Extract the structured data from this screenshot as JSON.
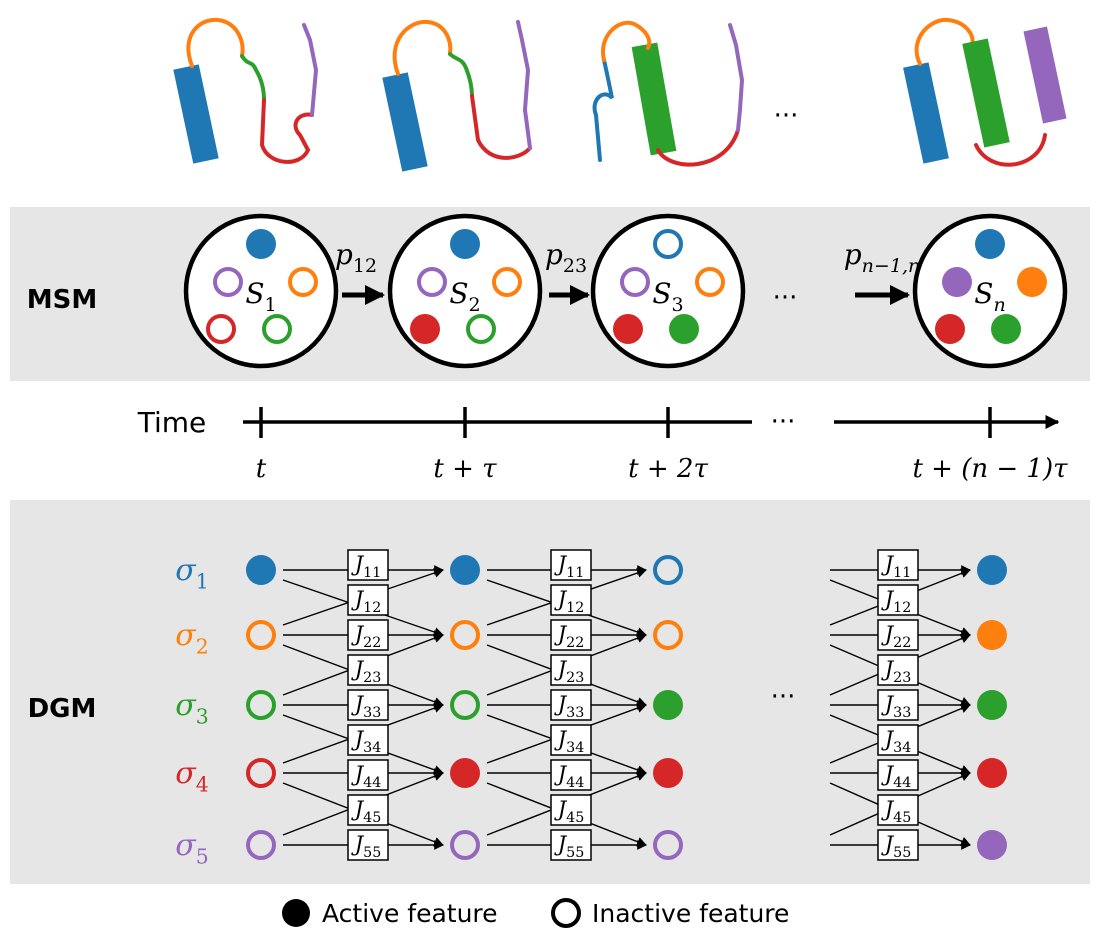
{
  "colors": {
    "blue": "#1f77b4",
    "orange": "#ff7f0e",
    "green": "#2ca02c",
    "red": "#d62728",
    "purple": "#9467bd",
    "panel": "#e6e6e6",
    "black": "#000000"
  },
  "ellipsis": "···",
  "msm": {
    "label": "MSM",
    "states": [
      {
        "label": "S",
        "sub": "1",
        "features": {
          "blue": "active",
          "orange": "inactive",
          "green": "inactive",
          "red": "inactive",
          "purple": "inactive"
        }
      },
      {
        "label": "S",
        "sub": "2",
        "features": {
          "blue": "active",
          "orange": "inactive",
          "green": "inactive",
          "red": "active",
          "purple": "inactive"
        }
      },
      {
        "label": "S",
        "sub": "3",
        "features": {
          "blue": "inactive",
          "orange": "inactive",
          "green": "active",
          "red": "active",
          "purple": "inactive"
        }
      },
      {
        "label": "S",
        "sub": "n",
        "features": {
          "blue": "active",
          "orange": "active",
          "green": "active",
          "red": "active",
          "purple": "active"
        }
      }
    ],
    "transitions": [
      {
        "label": "p",
        "sub": "12"
      },
      {
        "label": "p",
        "sub": "23"
      },
      {
        "label": "p",
        "sub": "n−1,n"
      }
    ]
  },
  "time": {
    "label": "Time",
    "ticks": [
      "t",
      "t + τ",
      "t + 2τ",
      "t + (n − 1)τ"
    ]
  },
  "dgm": {
    "label": "DGM",
    "spins": [
      {
        "label": "σ",
        "sub": "1",
        "color": "blue"
      },
      {
        "label": "σ",
        "sub": "2",
        "color": "orange"
      },
      {
        "label": "σ",
        "sub": "3",
        "color": "green"
      },
      {
        "label": "σ",
        "sub": "4",
        "color": "red"
      },
      {
        "label": "σ",
        "sub": "5",
        "color": "purple"
      }
    ],
    "couplings": [
      {
        "label": "J",
        "sub": "11"
      },
      {
        "label": "J",
        "sub": "12"
      },
      {
        "label": "J",
        "sub": "22"
      },
      {
        "label": "J",
        "sub": "23"
      },
      {
        "label": "J",
        "sub": "33"
      },
      {
        "label": "J",
        "sub": "34"
      },
      {
        "label": "J",
        "sub": "44"
      },
      {
        "label": "J",
        "sub": "45"
      },
      {
        "label": "J",
        "sub": "55"
      }
    ],
    "columns": [
      [
        "active",
        "inactive",
        "inactive",
        "inactive",
        "inactive"
      ],
      [
        "active",
        "inactive",
        "inactive",
        "active",
        "inactive"
      ],
      [
        "inactive",
        "inactive",
        "active",
        "active",
        "inactive"
      ],
      [
        "active",
        "active",
        "active",
        "active",
        "active"
      ]
    ]
  },
  "legend": {
    "active": "Active feature",
    "inactive": "Inactive feature"
  }
}
